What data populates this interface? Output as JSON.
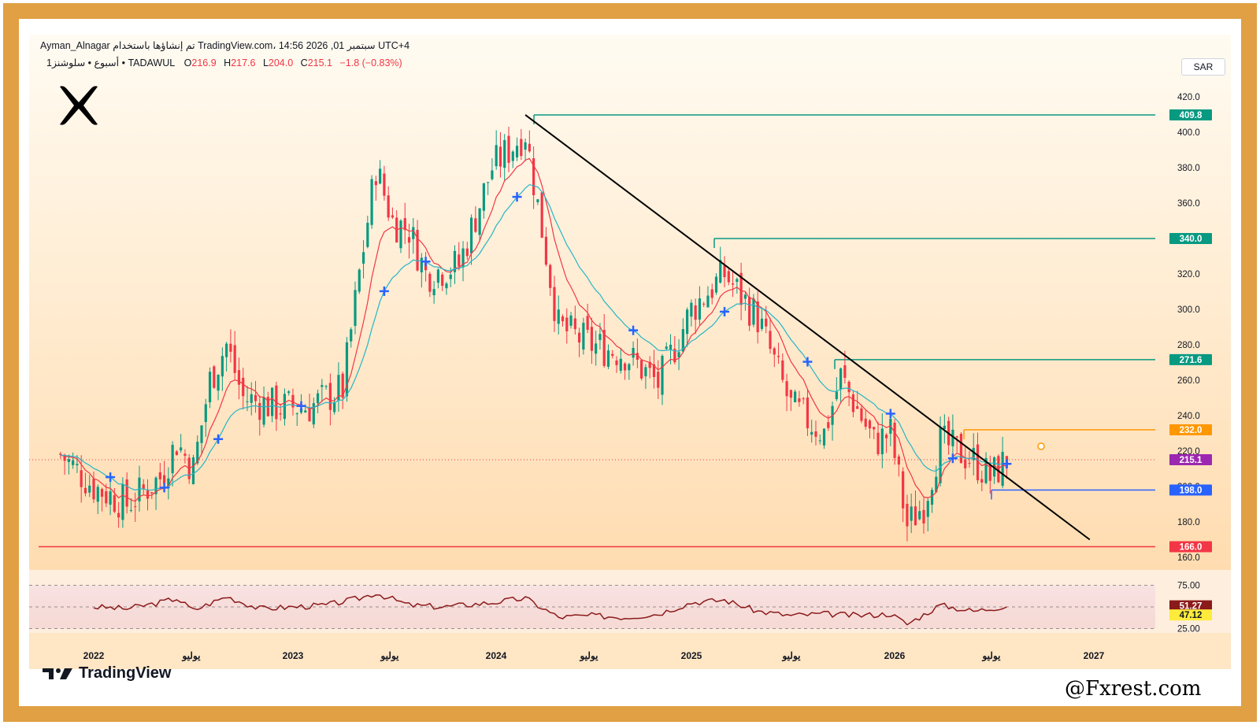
{
  "header": {
    "line1": "Ayman_Alnagar تم إنشاؤها باستخدام TradingView.com، 14:56 2026 ,01 سبتمبر UTC+4",
    "symbol_desc": "1أسبوع • سلوشنز • TADAWUL",
    "o_label": "O",
    "o_value": "216.9",
    "h_label": "H",
    "h_value": "217.6",
    "l_label": "L",
    "l_value": "204.0",
    "c_label": "C",
    "c_value": "215.1",
    "change": "−1.8 (−0.83%)"
  },
  "currency": "SAR",
  "brand": {
    "name": "TradingView"
  },
  "watermark": "@Fxrest.com",
  "colors": {
    "frame": "#e0a043",
    "bullish": "#089981",
    "bearish": "#f23645",
    "ema_fast": "#f23645",
    "ema_slow": "#26b5c7",
    "trendline": "#000000",
    "level_green": "#089981",
    "level_orange": "#ff9800",
    "level_blue": "#2962ff",
    "level_red": "#f23645",
    "rsi_line": "#8b1a1a",
    "price_label": "#9c27b0"
  },
  "icons": [
    "x-logo-icon",
    "tradingview-logo-icon",
    "cross-marker-icon"
  ],
  "price_axis": {
    "ticks": [
      "420.0",
      "400.0",
      "380.0",
      "360.0",
      "340.0",
      "320.0",
      "300.0",
      "280.0",
      "260.0",
      "240.0",
      "220.0",
      "200.0",
      "180.0",
      "160.0"
    ]
  },
  "time_axis": {
    "labels": [
      "2022",
      "يوليو",
      "2023",
      "يوليو",
      "2024",
      "يوليو",
      "2025",
      "يوليو",
      "2026",
      "يوليو",
      "2027"
    ]
  },
  "levels": [
    {
      "label": "409.8",
      "value": 409.8,
      "color": "#089981"
    },
    {
      "label": "340.0",
      "value": 340.0,
      "color": "#089981"
    },
    {
      "label": "271.6",
      "value": 271.6,
      "color": "#089981"
    },
    {
      "label": "232.0",
      "value": 232.0,
      "color": "#ff9800"
    },
    {
      "label": "215.1",
      "value": 215.1,
      "color": "#9c27b0"
    },
    {
      "label": "198.0",
      "value": 198.0,
      "color": "#2962ff"
    },
    {
      "label": "166.0",
      "value": 166.0,
      "color": "#f23645"
    }
  ],
  "rsi": {
    "ticks": [
      "75.00",
      "25.00"
    ],
    "value_labels": [
      {
        "label": "51.27",
        "bg": "#8b1a1a",
        "fg": "#ffffff"
      },
      {
        "label": "47.12",
        "bg": "#ffeb3b",
        "fg": "#131722"
      }
    ]
  },
  "chart_data": {
    "type": "candlestick",
    "timeframe": "1W",
    "price_ylim": [
      150,
      425
    ],
    "rsi_ylim": [
      20,
      80
    ],
    "close_path": [
      [
        "2021-11",
        218
      ],
      [
        "2022-01",
        200
      ],
      [
        "2022-03",
        190
      ],
      [
        "2022-05",
        205
      ],
      [
        "2022-06",
        225
      ],
      [
        "2022-07",
        210
      ],
      [
        "2022-08",
        260
      ],
      [
        "2022-09",
        280
      ],
      [
        "2022-10",
        250
      ],
      [
        "2022-12",
        245
      ],
      [
        "2023-02",
        245
      ],
      [
        "2023-04",
        255
      ],
      [
        "2023-05",
        320
      ],
      [
        "2023-06",
        380
      ],
      [
        "2023-07",
        350
      ],
      [
        "2023-08",
        345
      ],
      [
        "2023-09",
        320
      ],
      [
        "2023-11",
        325
      ],
      [
        "2024-01",
        380
      ],
      [
        "2024-03",
        400
      ],
      [
        "2024-05",
        290
      ],
      [
        "2024-07",
        280
      ],
      [
        "2024-09",
        275
      ],
      [
        "2024-11",
        258
      ],
      [
        "2025-01",
        300
      ],
      [
        "2025-03",
        320
      ],
      [
        "2025-05",
        295
      ],
      [
        "2025-07",
        245
      ],
      [
        "2025-09",
        230
      ],
      [
        "2025-10",
        262
      ],
      [
        "2025-12",
        225
      ],
      [
        "2026-01",
        230
      ],
      [
        "2026-02",
        178
      ],
      [
        "2026-03",
        190
      ],
      [
        "2026-04",
        225
      ],
      [
        "2026-06",
        215
      ],
      [
        "2026-07",
        205
      ],
      [
        "2026-08",
        215
      ]
    ],
    "trendline": {
      "from": [
        "2024-03",
        409.8
      ],
      "to": [
        "2027-01",
        170
      ]
    },
    "rsi_path": [
      [
        "2022-01",
        50
      ],
      [
        "2022-03",
        48
      ],
      [
        "2022-05",
        55
      ],
      [
        "2022-06",
        60
      ],
      [
        "2022-07",
        46
      ],
      [
        "2022-09",
        62
      ],
      [
        "2022-11",
        48
      ],
      [
        "2023-01",
        50
      ],
      [
        "2023-03",
        52
      ],
      [
        "2023-05",
        60
      ],
      [
        "2023-06",
        66
      ],
      [
        "2023-08",
        52
      ],
      [
        "2023-10",
        50
      ],
      [
        "2024-01",
        55
      ],
      [
        "2024-03",
        60
      ],
      [
        "2024-05",
        38
      ],
      [
        "2024-07",
        40
      ],
      [
        "2024-09",
        38
      ],
      [
        "2024-11",
        42
      ],
      [
        "2025-01",
        55
      ],
      [
        "2025-03",
        58
      ],
      [
        "2025-05",
        45
      ],
      [
        "2025-07",
        40
      ],
      [
        "2025-09",
        42
      ],
      [
        "2025-11",
        40
      ],
      [
        "2026-01",
        42
      ],
      [
        "2026-02",
        30
      ],
      [
        "2026-04",
        52
      ],
      [
        "2026-06",
        45
      ],
      [
        "2026-08",
        51.27
      ]
    ]
  }
}
